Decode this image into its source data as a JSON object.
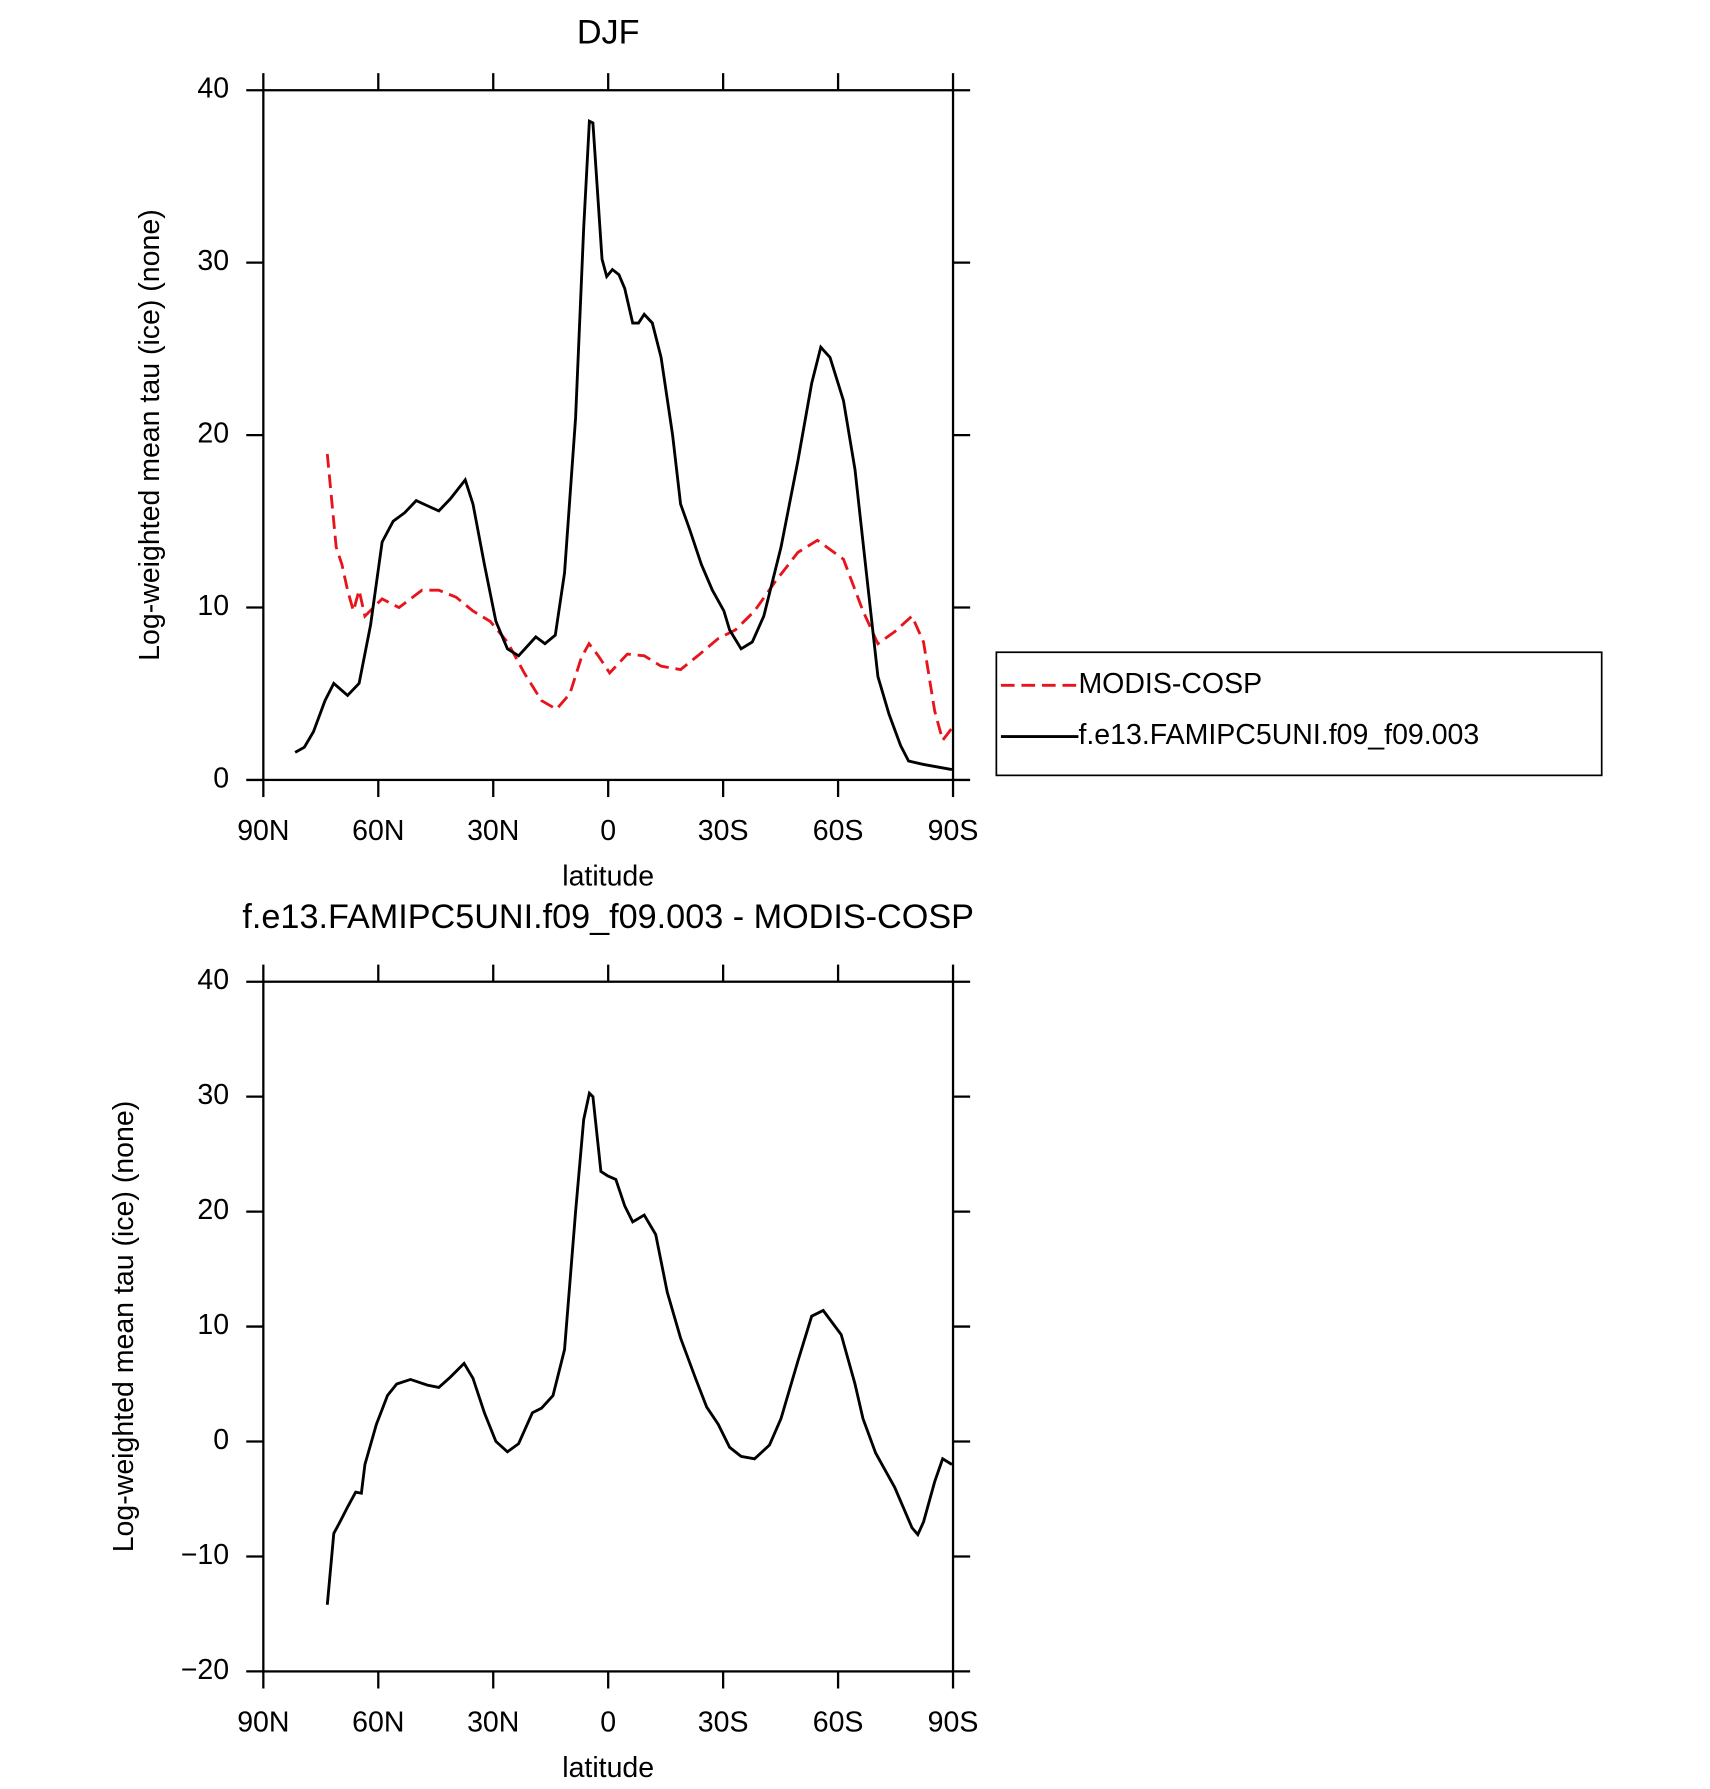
{
  "chart_data": [
    {
      "type": "line",
      "title": "DJF",
      "xlabel": "latitude",
      "ylabel": "Log-weighted mean tau (ice) (none)",
      "xlim": [
        90,
        -90
      ],
      "ylim": [
        0,
        40
      ],
      "xticks": [
        {
          "value": 90,
          "label": "90N"
        },
        {
          "value": 60,
          "label": "60N"
        },
        {
          "value": 30,
          "label": "30N"
        },
        0,
        {
          "value": -30,
          "label": "30S"
        },
        {
          "value": -60,
          "label": "60S"
        },
        {
          "value": -90,
          "label": "90S"
        }
      ],
      "yticks": [
        0,
        10,
        20,
        30,
        40
      ],
      "legend": "right",
      "series": [
        {
          "name": "MODIS-COSP",
          "color": "#e8141c",
          "linestyle": "dashed",
          "x": [
            73.3,
            71,
            69.5,
            68,
            66.5,
            65,
            63.5,
            59,
            54.6,
            48.6,
            44.2,
            39.7,
            35.3,
            30.8,
            26.3,
            21.9,
            17.4,
            13.5,
            10,
            7,
            5,
            2.6,
            -0.4,
            -5,
            -9.4,
            -13.8,
            -18.9,
            -23.4,
            -28.7,
            -33.2,
            -38.2,
            -43.6,
            -49.5,
            -54.6,
            -61.4,
            -66.5,
            -70.4,
            -74.8,
            -79.3,
            -82.3,
            -85.2,
            -87.3,
            -89.7
          ],
          "values": [
            18.9,
            13.5,
            12.5,
            11,
            9.8,
            11,
            9.5,
            10.5,
            10,
            11,
            11,
            10.6,
            9.8,
            9.2,
            8,
            6.2,
            4.6,
            4.1,
            5,
            7.1,
            7.9,
            7.2,
            6.2,
            7.3,
            7.2,
            6.6,
            6.4,
            7.2,
            8.2,
            8.7,
            9.8,
            11.5,
            13.2,
            13.9,
            12.8,
            9.8,
            7.9,
            8.6,
            9.5,
            8,
            4,
            2.3,
            3
          ]
        },
        {
          "name": "f.e13.FAMIPC5UNI.f09_f09.003",
          "color": "#000000",
          "linestyle": "solid",
          "x": [
            81.7,
            79.3,
            76.9,
            73.9,
            71.6,
            68,
            65,
            62,
            59,
            56.1,
            53.1,
            50.1,
            47.2,
            44.2,
            41.2,
            37.3,
            35.3,
            32.3,
            29.3,
            26.3,
            23.4,
            18.9,
            16.5,
            13.8,
            11.4,
            8.5,
            6.4,
            4.9,
            4,
            1.6,
            0.4,
            -1.1,
            -2.8,
            -4.3,
            -6.4,
            -7.9,
            -9.4,
            -11.5,
            -13.8,
            -16.8,
            -18.9,
            -21.3,
            -24.3,
            -27.2,
            -30.2,
            -31.7,
            -34.7,
            -37.6,
            -40.6,
            -45.1,
            -49.5,
            -53.1,
            -55.5,
            -57.9,
            -61.4,
            -64.4,
            -67.4,
            -70.4,
            -73.3,
            -76.3,
            -78.4,
            -82.3,
            -89.7
          ],
          "values": [
            1.6,
            1.9,
            2.8,
            4.6,
            5.6,
            4.9,
            5.6,
            9,
            13.8,
            15,
            15.5,
            16.2,
            15.9,
            15.6,
            16.3,
            17.4,
            16,
            12.5,
            9.2,
            7.6,
            7.2,
            8.3,
            7.9,
            8.4,
            12,
            21,
            32,
            38.2,
            38.1,
            30.2,
            29.2,
            29.6,
            29.3,
            28.5,
            26.5,
            26.5,
            27,
            26.5,
            24.5,
            20,
            16,
            14.5,
            12.5,
            11,
            9.8,
            8.7,
            7.6,
            8,
            9.5,
            13.5,
            18.5,
            23,
            25.1,
            24.5,
            22,
            18,
            12,
            6,
            3.8,
            2,
            1.1,
            0.9,
            0.6
          ]
        }
      ]
    },
    {
      "type": "line",
      "title": "f.e13.FAMIPC5UNI.f09_f09.003 - MODIS-COSP",
      "xlabel": "latitude",
      "ylabel": "Log-weighted mean tau (ice) (none)",
      "xlim": [
        90,
        -90
      ],
      "ylim": [
        -20,
        40
      ],
      "xticks": [
        {
          "value": 90,
          "label": "90N"
        },
        {
          "value": 60,
          "label": "60N"
        },
        {
          "value": 30,
          "label": "30N"
        },
        0,
        {
          "value": -30,
          "label": "30S"
        },
        {
          "value": -60,
          "label": "60S"
        },
        {
          "value": -90,
          "label": "90S"
        }
      ],
      "yticks": [
        {
          "value": -20,
          "label": "−20"
        },
        {
          "value": -10,
          "label": "−10"
        },
        0,
        10,
        20,
        30,
        40
      ],
      "series": [
        {
          "color": "#000000",
          "linestyle": "solid",
          "x": [
            73.3,
            71.6,
            70,
            68,
            65.9,
            64.4,
            63.5,
            60.5,
            57.6,
            55.2,
            51.6,
            47.2,
            44.2,
            41.2,
            37.6,
            35.3,
            32.3,
            29.3,
            26.3,
            23.4,
            19.8,
            17.4,
            14.4,
            11.4,
            8.5,
            6.4,
            4.9,
            4,
            1.9,
            0.1,
            -2,
            -4.3,
            -6.4,
            -9.4,
            -12.4,
            -15.4,
            -18.9,
            -22.8,
            -25.7,
            -28.7,
            -31.7,
            -34.7,
            -38.2,
            -42.1,
            -45.1,
            -49.5,
            -53.1,
            -56.1,
            -60.8,
            -64.4,
            -66.5,
            -69.8,
            -74.8,
            -79.3,
            -80.8,
            -82.3,
            -85.2,
            -87.3,
            -89.7
          ],
          "values": [
            -14.2,
            -8,
            -7,
            -5.7,
            -4.4,
            -4.5,
            -2,
            1.5,
            4,
            5,
            5.4,
            4.9,
            4.7,
            5.6,
            6.8,
            5.5,
            2.5,
            0,
            -0.9,
            -0.2,
            2.5,
            2.9,
            4,
            8,
            20,
            28,
            30.3,
            30,
            23.5,
            23.1,
            22.8,
            20.5,
            19.1,
            19.7,
            18,
            13,
            9,
            5.5,
            3,
            1.5,
            -0.5,
            -1.3,
            -1.5,
            -0.3,
            2,
            7,
            10.9,
            11.4,
            9.3,
            5,
            2,
            -1,
            -4,
            -7.5,
            -8.1,
            -7,
            -3.5,
            -1.5,
            -2
          ]
        }
      ]
    }
  ]
}
